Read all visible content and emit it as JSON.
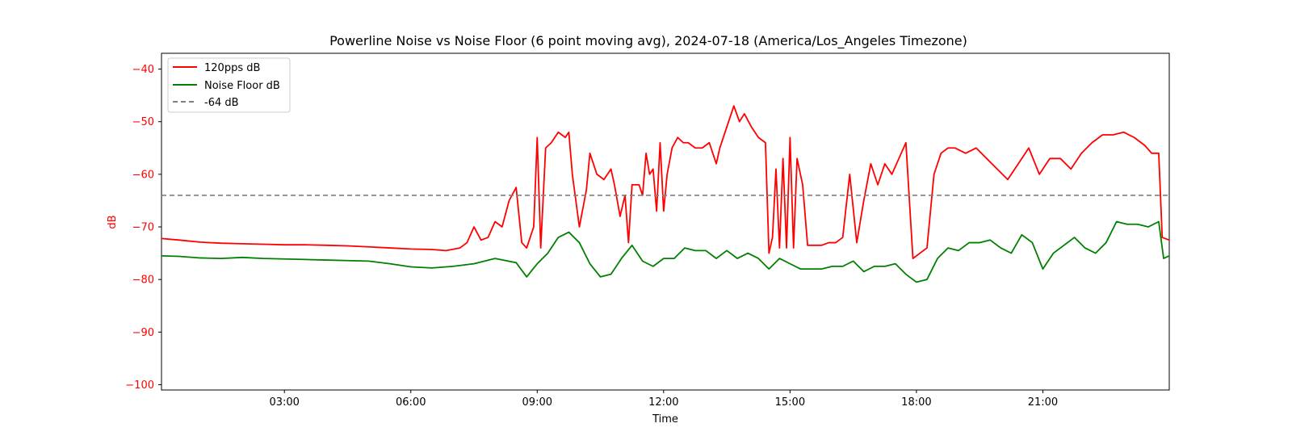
{
  "chart_data": {
    "type": "line",
    "title": "Powerline Noise vs Noise Floor (6 point moving avg), 2024-07-18 (America/Los_Angeles Timezone)",
    "xlabel": "Time",
    "ylabel": "dB",
    "ylabel_color": "#ff0000",
    "ytick_color": "#ff0000",
    "xlim": [
      "00:05",
      "24:00"
    ],
    "ylim": [
      -101,
      -37
    ],
    "x_ticks": [
      "03:00",
      "06:00",
      "09:00",
      "12:00",
      "15:00",
      "18:00",
      "21:00"
    ],
    "y_ticks": [
      -40,
      -50,
      -60,
      -70,
      -80,
      -90,
      -100
    ],
    "y_tick_labels": [
      "−40",
      "−50",
      "−60",
      "−70",
      "−80",
      "−90",
      "−100"
    ],
    "grid": false,
    "legend_position": "top-left",
    "reference_line": {
      "name": "-64 dB",
      "value": -64,
      "color": "#808080",
      "style": "dashed"
    },
    "series": [
      {
        "name": "120pps dB",
        "color": "#ff0000",
        "points": [
          [
            "00:05",
            -72.2
          ],
          [
            "00:30",
            -72.5
          ],
          [
            "01:00",
            -72.9
          ],
          [
            "01:30",
            -73.1
          ],
          [
            "02:00",
            -73.2
          ],
          [
            "02:30",
            -73.3
          ],
          [
            "03:00",
            -73.4
          ],
          [
            "03:30",
            -73.4
          ],
          [
            "04:00",
            -73.5
          ],
          [
            "04:30",
            -73.6
          ],
          [
            "05:00",
            -73.8
          ],
          [
            "05:30",
            -74.0
          ],
          [
            "06:00",
            -74.2
          ],
          [
            "06:30",
            -74.3
          ],
          [
            "06:50",
            -74.5
          ],
          [
            "07:10",
            -74.0
          ],
          [
            "07:20",
            -73.0
          ],
          [
            "07:30",
            -70.0
          ],
          [
            "07:40",
            -72.5
          ],
          [
            "07:50",
            -72.0
          ],
          [
            "08:00",
            -69.0
          ],
          [
            "08:10",
            -70.0
          ],
          [
            "08:20",
            -65.0
          ],
          [
            "08:30",
            -62.5
          ],
          [
            "08:38",
            -73.0
          ],
          [
            "08:45",
            -74.0
          ],
          [
            "08:55",
            -70.0
          ],
          [
            "09:00",
            -53.0
          ],
          [
            "09:05",
            -74.0
          ],
          [
            "09:12",
            -55.0
          ],
          [
            "09:20",
            -54.0
          ],
          [
            "09:30",
            -52.0
          ],
          [
            "09:40",
            -53.0
          ],
          [
            "09:45",
            -52.0
          ],
          [
            "09:50",
            -60.0
          ],
          [
            "10:00",
            -70.0
          ],
          [
            "10:10",
            -63.0
          ],
          [
            "10:15",
            -56.0
          ],
          [
            "10:25",
            -60.0
          ],
          [
            "10:35",
            -61.0
          ],
          [
            "10:45",
            -59.0
          ],
          [
            "10:50",
            -62.0
          ],
          [
            "10:58",
            -68.0
          ],
          [
            "11:05",
            -64.0
          ],
          [
            "11:10",
            -73.0
          ],
          [
            "11:15",
            -62.0
          ],
          [
            "11:25",
            -62.0
          ],
          [
            "11:30",
            -64.0
          ],
          [
            "11:35",
            -56.0
          ],
          [
            "11:40",
            -60.0
          ],
          [
            "11:45",
            -59.0
          ],
          [
            "11:50",
            -67.0
          ],
          [
            "11:55",
            -54.0
          ],
          [
            "12:00",
            -67.0
          ],
          [
            "12:05",
            -60.0
          ],
          [
            "12:12",
            -55.0
          ],
          [
            "12:20",
            -53.0
          ],
          [
            "12:28",
            -54.0
          ],
          [
            "12:35",
            -54.0
          ],
          [
            "12:45",
            -55.0
          ],
          [
            "12:55",
            -55.0
          ],
          [
            "13:05",
            -54.0
          ],
          [
            "13:15",
            -58.0
          ],
          [
            "13:20",
            -55.0
          ],
          [
            "13:30",
            -51.0
          ],
          [
            "13:40",
            -47.0
          ],
          [
            "13:48",
            -50.0
          ],
          [
            "13:55",
            -48.5
          ],
          [
            "14:05",
            -51.0
          ],
          [
            "14:15",
            -53.0
          ],
          [
            "14:25",
            -54.0
          ],
          [
            "14:30",
            -75.0
          ],
          [
            "14:35",
            -72.0
          ],
          [
            "14:40",
            -59.0
          ],
          [
            "14:45",
            -74.0
          ],
          [
            "14:50",
            -57.0
          ],
          [
            "14:55",
            -74.0
          ],
          [
            "15:00",
            -53.0
          ],
          [
            "15:05",
            -74.0
          ],
          [
            "15:10",
            -57.0
          ],
          [
            "15:18",
            -62.0
          ],
          [
            "15:25",
            -73.5
          ],
          [
            "15:35",
            -73.5
          ],
          [
            "15:45",
            -73.5
          ],
          [
            "15:55",
            -73.0
          ],
          [
            "16:05",
            -73.0
          ],
          [
            "16:15",
            -72.0
          ],
          [
            "16:25",
            -60.0
          ],
          [
            "16:35",
            -73.0
          ],
          [
            "16:45",
            -65.0
          ],
          [
            "16:55",
            -58.0
          ],
          [
            "17:05",
            -62.0
          ],
          [
            "17:15",
            -58.0
          ],
          [
            "17:25",
            -60.0
          ],
          [
            "17:35",
            -57.0
          ],
          [
            "17:45",
            -54.0
          ],
          [
            "17:55",
            -76.0
          ],
          [
            "18:05",
            -75.0
          ],
          [
            "18:15",
            -74.0
          ],
          [
            "18:25",
            -60.0
          ],
          [
            "18:35",
            -56.0
          ],
          [
            "18:45",
            -55.0
          ],
          [
            "18:55",
            -55.0
          ],
          [
            "19:10",
            -56.0
          ],
          [
            "19:25",
            -55.0
          ],
          [
            "19:40",
            -57.0
          ],
          [
            "19:55",
            -59.0
          ],
          [
            "20:10",
            -61.0
          ],
          [
            "20:25",
            -58.0
          ],
          [
            "20:40",
            -55.0
          ],
          [
            "20:55",
            -60.0
          ],
          [
            "21:10",
            -57.0
          ],
          [
            "21:25",
            -57.0
          ],
          [
            "21:40",
            -59.0
          ],
          [
            "21:55",
            -56.0
          ],
          [
            "22:10",
            -54.0
          ],
          [
            "22:25",
            -52.5
          ],
          [
            "22:40",
            -52.5
          ],
          [
            "22:55",
            -52.0
          ],
          [
            "23:10",
            -53.0
          ],
          [
            "23:25",
            -54.5
          ],
          [
            "23:35",
            -56.0
          ],
          [
            "23:45",
            -56.0
          ],
          [
            "23:50",
            -72.0
          ],
          [
            "24:00",
            -72.5
          ]
        ]
      },
      {
        "name": "Noise Floor dB",
        "color": "#008000",
        "points": [
          [
            "00:05",
            -75.5
          ],
          [
            "00:30",
            -75.6
          ],
          [
            "01:00",
            -75.9
          ],
          [
            "01:30",
            -76.0
          ],
          [
            "02:00",
            -75.8
          ],
          [
            "02:30",
            -76.0
          ],
          [
            "03:00",
            -76.1
          ],
          [
            "03:30",
            -76.2
          ],
          [
            "04:00",
            -76.3
          ],
          [
            "04:30",
            -76.4
          ],
          [
            "05:00",
            -76.5
          ],
          [
            "05:30",
            -77.0
          ],
          [
            "06:00",
            -77.6
          ],
          [
            "06:30",
            -77.8
          ],
          [
            "07:00",
            -77.5
          ],
          [
            "07:30",
            -77.0
          ],
          [
            "07:45",
            -76.5
          ],
          [
            "08:00",
            -76.0
          ],
          [
            "08:30",
            -76.8
          ],
          [
            "08:45",
            -79.5
          ],
          [
            "09:00",
            -77.0
          ],
          [
            "09:15",
            -75.0
          ],
          [
            "09:30",
            -72.0
          ],
          [
            "09:45",
            -71.0
          ],
          [
            "10:00",
            -73.0
          ],
          [
            "10:15",
            -77.0
          ],
          [
            "10:30",
            -79.5
          ],
          [
            "10:45",
            -79.0
          ],
          [
            "11:00",
            -76.0
          ],
          [
            "11:15",
            -73.5
          ],
          [
            "11:30",
            -76.5
          ],
          [
            "11:45",
            -77.5
          ],
          [
            "12:00",
            -76.0
          ],
          [
            "12:15",
            -76.0
          ],
          [
            "12:30",
            -74.0
          ],
          [
            "12:45",
            -74.5
          ],
          [
            "13:00",
            -74.5
          ],
          [
            "13:15",
            -76.0
          ],
          [
            "13:30",
            -74.5
          ],
          [
            "13:45",
            -76.0
          ],
          [
            "14:00",
            -75.0
          ],
          [
            "14:15",
            -76.0
          ],
          [
            "14:30",
            -78.0
          ],
          [
            "14:45",
            -76.0
          ],
          [
            "15:00",
            -77.0
          ],
          [
            "15:15",
            -78.0
          ],
          [
            "15:30",
            -78.0
          ],
          [
            "15:45",
            -78.0
          ],
          [
            "16:00",
            -77.5
          ],
          [
            "16:15",
            -77.5
          ],
          [
            "16:30",
            -76.5
          ],
          [
            "16:45",
            -78.5
          ],
          [
            "17:00",
            -77.5
          ],
          [
            "17:15",
            -77.5
          ],
          [
            "17:30",
            -77.0
          ],
          [
            "17:45",
            -79.0
          ],
          [
            "18:00",
            -80.5
          ],
          [
            "18:15",
            -80.0
          ],
          [
            "18:30",
            -76.0
          ],
          [
            "18:45",
            -74.0
          ],
          [
            "19:00",
            -74.5
          ],
          [
            "19:15",
            -73.0
          ],
          [
            "19:30",
            -73.0
          ],
          [
            "19:45",
            -72.5
          ],
          [
            "20:00",
            -74.0
          ],
          [
            "20:15",
            -75.0
          ],
          [
            "20:30",
            -71.5
          ],
          [
            "20:45",
            -73.0
          ],
          [
            "21:00",
            -78.0
          ],
          [
            "21:15",
            -75.0
          ],
          [
            "21:30",
            -73.5
          ],
          [
            "21:45",
            -72.0
          ],
          [
            "22:00",
            -74.0
          ],
          [
            "22:15",
            -75.0
          ],
          [
            "22:30",
            -73.0
          ],
          [
            "22:45",
            -69.0
          ],
          [
            "23:00",
            -69.5
          ],
          [
            "23:15",
            -69.5
          ],
          [
            "23:30",
            -70.0
          ],
          [
            "23:45",
            -69.0
          ],
          [
            "23:52",
            -76.0
          ],
          [
            "24:00",
            -75.5
          ]
        ]
      }
    ]
  }
}
